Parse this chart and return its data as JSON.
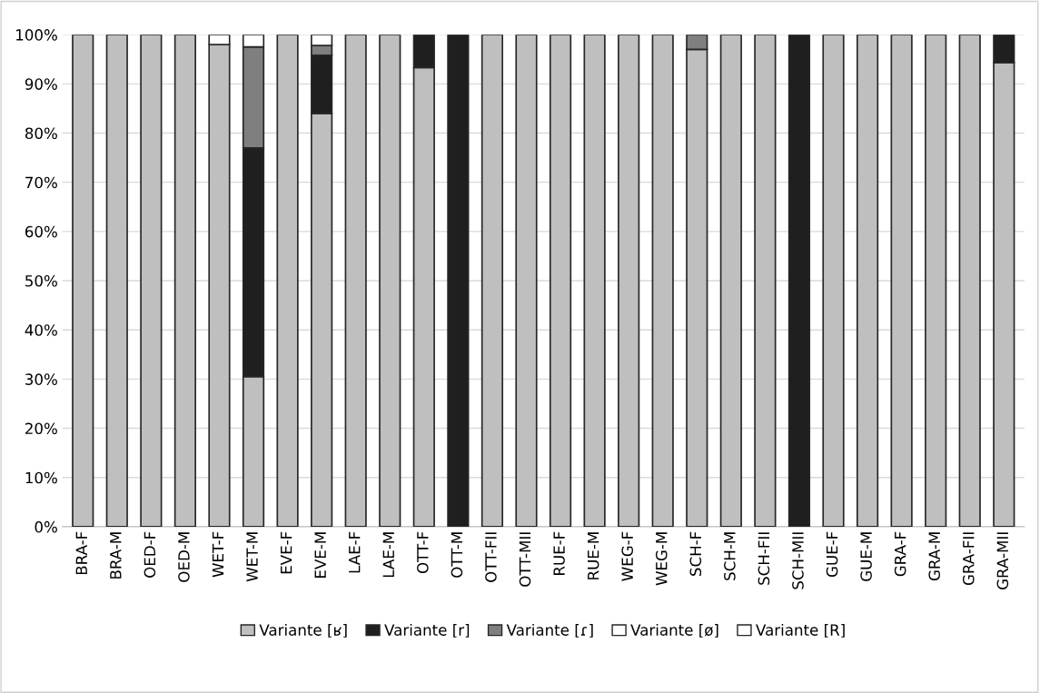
{
  "chart_data": {
    "type": "bar",
    "stacked": true,
    "categories": [
      "BRA-F",
      "BRA-M",
      "OED-F",
      "OED-M",
      "WET-F",
      "WET-M",
      "EVE-F",
      "EVE-M",
      "LAE-F",
      "LAE-M",
      "OTT-F",
      "OTT-M",
      "OTT-FII",
      "OTT-MII",
      "RUE-F",
      "RUE-M",
      "WEG-F",
      "WEG-M",
      "SCH-F",
      "SCH-M",
      "SCH-FII",
      "SCH-MII",
      "GUE-F",
      "GUE-M",
      "GRA-F",
      "GRA-M",
      "GRA-FII",
      "GRA-MII"
    ],
    "series": [
      {
        "name": "Variante [ʁ]",
        "color": "#bfbfbf",
        "values": [
          100,
          100,
          100,
          100,
          98,
          30.5,
          100,
          84,
          100,
          100,
          93.3,
          0,
          100,
          100,
          100,
          100,
          100,
          100,
          97,
          100,
          100,
          0,
          100,
          100,
          100,
          100,
          100,
          94.3
        ]
      },
      {
        "name": "Variante [r]",
        "color": "#1f1f1f",
        "values": [
          0,
          0,
          0,
          0,
          0,
          46.5,
          0,
          11.8,
          0,
          0,
          6.7,
          100,
          0,
          0,
          0,
          0,
          0,
          0,
          0,
          0,
          0,
          100,
          0,
          0,
          0,
          0,
          0,
          5.7
        ]
      },
      {
        "name": "Variante [ɾ]",
        "color": "#7f7f7f",
        "values": [
          0,
          0,
          0,
          0,
          0,
          20.5,
          0,
          2,
          0,
          0,
          0,
          0,
          0,
          0,
          0,
          0,
          0,
          0,
          3,
          0,
          0,
          0,
          0,
          0,
          0,
          0,
          0,
          0
        ]
      },
      {
        "name": "Variante [ø]",
        "color": "#ffffff",
        "values": [
          0,
          0,
          0,
          0,
          0,
          2.5,
          0,
          2.2,
          0,
          0,
          0,
          0,
          0,
          0,
          0,
          0,
          0,
          0,
          0,
          0,
          0,
          0,
          0,
          0,
          0,
          0,
          0,
          0
        ]
      },
      {
        "name": "Variante [R]",
        "color": "#ffffff",
        "values": [
          0,
          0,
          0,
          0,
          2,
          0,
          0,
          0,
          0,
          0,
          0,
          0,
          0,
          0,
          0,
          0,
          0,
          0,
          0,
          0,
          0,
          0,
          0,
          0,
          0,
          0,
          0,
          0
        ]
      }
    ],
    "ylim": [
      0,
      100
    ],
    "yticks": [
      {
        "value": 0,
        "label": "0%"
      },
      {
        "value": 10,
        "label": "10%"
      },
      {
        "value": 20,
        "label": "20%"
      },
      {
        "value": 30,
        "label": "30%"
      },
      {
        "value": 40,
        "label": "40%"
      },
      {
        "value": 50,
        "label": "50%"
      },
      {
        "value": 60,
        "label": "60%"
      },
      {
        "value": 70,
        "label": "70%"
      },
      {
        "value": 80,
        "label": "80%"
      },
      {
        "value": 90,
        "label": "90%"
      },
      {
        "value": 100,
        "label": "100%"
      }
    ],
    "grid": "y",
    "legend": "bottom"
  }
}
